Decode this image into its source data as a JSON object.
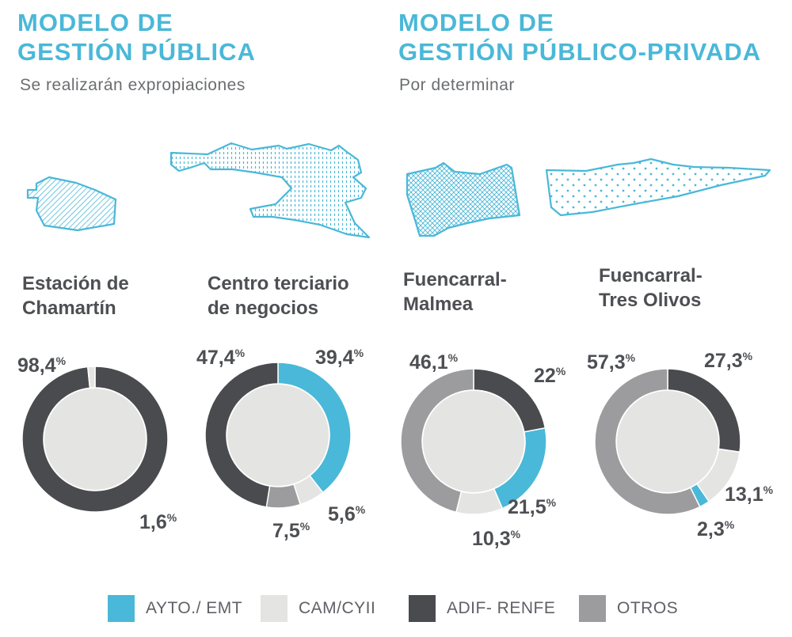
{
  "sections": [
    {
      "title_line1": "MODELO DE",
      "title_line2": "GESTIÓN PÚBLICA",
      "subtitle": "Se realizarán expropiaciones"
    },
    {
      "title_line1": "MODELO DE",
      "title_line2": "GESTIÓN PÚBLICO-PRIVADA",
      "subtitle": "Por determinar"
    }
  ],
  "colors": {
    "accent": "#4ab8d8",
    "ayto_emt": "#4ab8d8",
    "cam_cyii": "#e4e4e2",
    "adif_renfe": "#4a4b4f",
    "otros": "#9c9c9e",
    "donut_hole": "#e4e4e2"
  },
  "legend": [
    {
      "label": "AYTO./ EMT",
      "color_key": "ayto_emt"
    },
    {
      "label": "CAM/CYII",
      "color_key": "cam_cyii"
    },
    {
      "label": "ADIF- RENFE",
      "color_key": "adif_renfe"
    },
    {
      "label": "OTROS",
      "color_key": "otros"
    }
  ],
  "chart_data": [
    {
      "type": "pie",
      "donut": true,
      "title_line1": "Estación de",
      "title_line2": "Chamartín",
      "slices": [
        {
          "series": "ADIF- RENFE",
          "value": 98.4,
          "label": "98,4"
        },
        {
          "series": "CAM/CYII",
          "value": 1.6,
          "label": "1,6"
        }
      ]
    },
    {
      "type": "pie",
      "donut": true,
      "title_line1": "Centro terciario",
      "title_line2": "de negocios",
      "slices": [
        {
          "series": "AYTO./ EMT",
          "value": 39.4,
          "label": "39,4"
        },
        {
          "series": "CAM/CYII",
          "value": 5.6,
          "label": "5,6"
        },
        {
          "series": "OTROS",
          "value": 7.5,
          "label": "7,5"
        },
        {
          "series": "ADIF- RENFE",
          "value": 47.4,
          "label": "47,4"
        }
      ]
    },
    {
      "type": "pie",
      "donut": true,
      "title_line1": "Fuencarral-",
      "title_line2": "Malmea",
      "slices": [
        {
          "series": "ADIF- RENFE",
          "value": 22,
          "label": "22"
        },
        {
          "series": "AYTO./ EMT",
          "value": 21.5,
          "label": "21,5"
        },
        {
          "series": "CAM/CYII",
          "value": 10.3,
          "label": "10,3"
        },
        {
          "series": "OTROS",
          "value": 46.1,
          "label": "46,1"
        }
      ]
    },
    {
      "type": "pie",
      "donut": true,
      "title_line1": "Fuencarral-",
      "title_line2": "Tres Olivos",
      "slices": [
        {
          "series": "ADIF- RENFE",
          "value": 27.3,
          "label": "27,3"
        },
        {
          "series": "CAM/CYII",
          "value": 13.1,
          "label": "13,1"
        },
        {
          "series": "AYTO./ EMT",
          "value": 2.3,
          "label": "2,3"
        },
        {
          "series": "OTROS",
          "value": 57.3,
          "label": "57,3"
        }
      ]
    }
  ]
}
